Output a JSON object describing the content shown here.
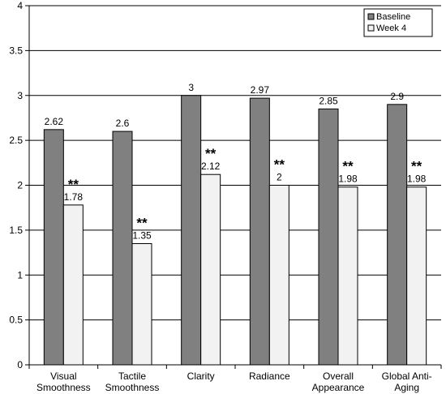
{
  "chart_data": {
    "type": "bar",
    "categories": [
      [
        "Visual",
        "Smoothness"
      ],
      [
        "Tactile",
        "Smoothness"
      ],
      [
        "Clarity"
      ],
      [
        "Radiance"
      ],
      [
        "Overall",
        "Appearance"
      ],
      [
        "Global Anti-",
        "Aging"
      ]
    ],
    "series": [
      {
        "name": "Baseline",
        "color": "#808080",
        "values": [
          2.62,
          2.6,
          3,
          2.97,
          2.85,
          2.9
        ],
        "labels": [
          "2.62",
          "2.6",
          "3",
          "2.97",
          "2.85",
          "2.9"
        ]
      },
      {
        "name": "Week 4",
        "color": "#f2f2f2",
        "values": [
          1.78,
          1.35,
          2.12,
          2,
          1.98,
          1.98
        ],
        "labels": [
          "1.78",
          "1.35",
          "2.12",
          "2",
          "1.98",
          "1.98"
        ]
      }
    ],
    "significance_marks": [
      "**",
      "**",
      "**",
      "**",
      "**",
      "**"
    ],
    "ylim": [
      0,
      4
    ],
    "yticks": [
      "0",
      "0.5",
      "1",
      "1.5",
      "2",
      "2.5",
      "3",
      "3.5",
      "4"
    ],
    "grid": true,
    "legend_position": "top-right",
    "title": "",
    "xlabel": "",
    "ylabel": ""
  }
}
